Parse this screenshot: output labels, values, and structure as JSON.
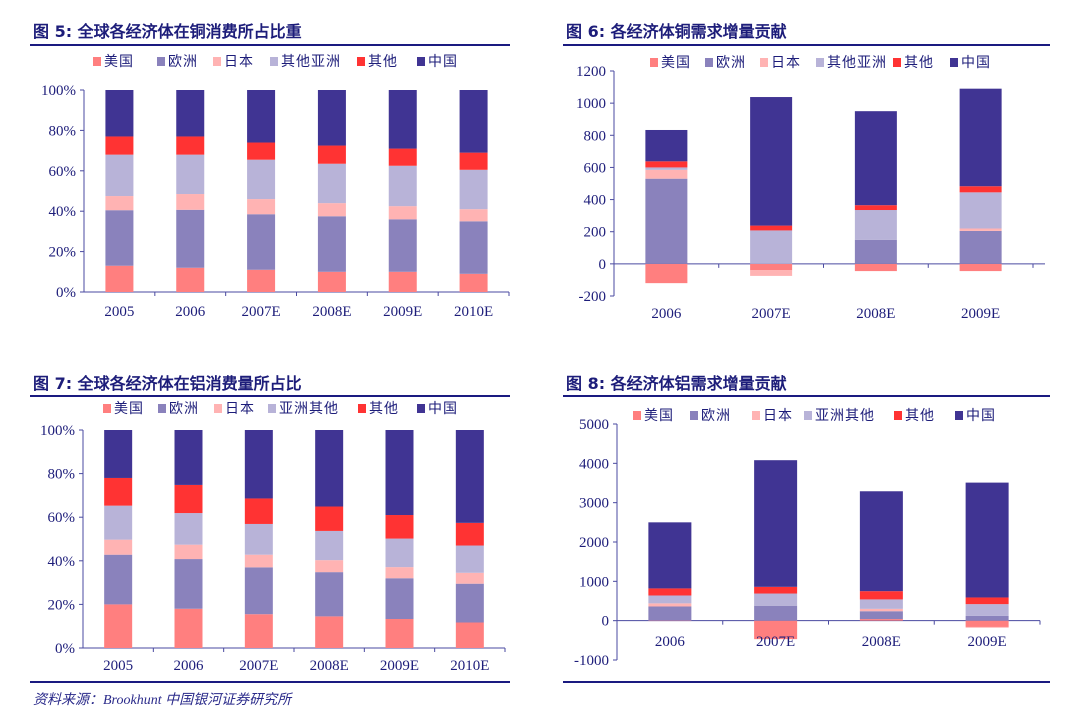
{
  "source": "资料来源：Brookhunt 中国银河证券研究所",
  "colors": {
    "美国": "#ff7f7f",
    "欧洲": "#8a82bc",
    "日本": "#ffb3b3",
    "其他亚洲": "#b8b3d8",
    "亚洲其他": "#b8b3d8",
    "其他": "#ff3333",
    "中国": "#403493"
  },
  "chart_data": [
    {
      "title": "图 5:  全球各经济体在铜消费所占比重",
      "type": "bar",
      "stacked": true,
      "categories": [
        "2005",
        "2006",
        "2007E",
        "2008E",
        "2009E",
        "2010E"
      ],
      "ylim": [
        0,
        100
      ],
      "yticks": [
        "0%",
        "20%",
        "40%",
        "60%",
        "80%",
        "100%"
      ],
      "series": [
        {
          "name": "美国",
          "values": [
            13,
            12,
            11,
            10,
            10,
            9
          ]
        },
        {
          "name": "欧洲",
          "values": [
            27.5,
            28.7,
            27.5,
            27.5,
            26,
            26
          ]
        },
        {
          "name": "日本",
          "values": [
            7,
            7.8,
            7.5,
            6.5,
            6.5,
            6
          ]
        },
        {
          "name": "其他亚洲",
          "values": [
            20.5,
            19.5,
            19.5,
            19.5,
            20,
            19.5
          ]
        },
        {
          "name": "其他",
          "values": [
            9,
            9,
            8.5,
            9,
            8.5,
            8.5
          ]
        },
        {
          "name": "中国",
          "values": [
            23,
            23,
            26,
            27.5,
            29,
            31
          ]
        }
      ],
      "legend": "top",
      "grid": false
    },
    {
      "title": "图 6:  各经济体铜需求增量贡献",
      "type": "bar",
      "stacked": true,
      "categories": [
        "2006",
        "2007E",
        "2008E",
        "2009E"
      ],
      "ylim": [
        -200,
        1200
      ],
      "yticks": [
        "-200",
        "0",
        "200",
        "400",
        "600",
        "800",
        "1000",
        "1200"
      ],
      "series": [
        {
          "name": "美国",
          "values": [
            -120,
            -40,
            -45,
            -45
          ]
        },
        {
          "name": "欧洲",
          "values": [
            530,
            0,
            150,
            205
          ]
        },
        {
          "name": "日本",
          "values": [
            55,
            -35,
            0,
            15
          ]
        },
        {
          "name": "其他亚洲",
          "values": [
            15,
            208,
            185,
            225
          ]
        },
        {
          "name": "其他",
          "values": [
            38,
            30,
            30,
            38
          ]
        },
        {
          "name": "中国",
          "values": [
            195,
            800,
            585,
            607
          ]
        }
      ],
      "legend": "top",
      "grid": false
    },
    {
      "title": "图 7:  全球各经济体在铝消费量所占比",
      "type": "bar",
      "stacked": true,
      "categories": [
        "2005",
        "2006",
        "2007E",
        "2008E",
        "2009E",
        "2010E"
      ],
      "ylim": [
        0,
        100
      ],
      "yticks": [
        "0%",
        "20%",
        "40%",
        "60%",
        "80%",
        "100%"
      ],
      "series": [
        {
          "name": "美国",
          "values": [
            20,
            18,
            15.5,
            14.5,
            13.3,
            11.7
          ]
        },
        {
          "name": "欧洲",
          "values": [
            22.8,
            22.8,
            21.5,
            20.3,
            18.7,
            17.8
          ]
        },
        {
          "name": "日本",
          "values": [
            6.9,
            6.6,
            5.8,
            5.5,
            5.1,
            5
          ]
        },
        {
          "name": "亚洲其他",
          "values": [
            15.6,
            14.5,
            14.1,
            13.4,
            13.1,
            12.5
          ]
        },
        {
          "name": "其他",
          "values": [
            12.7,
            12.9,
            11.7,
            11.2,
            10.8,
            10.4
          ]
        },
        {
          "name": "中国",
          "values": [
            22,
            25.2,
            31.4,
            35.1,
            39,
            42.6
          ]
        }
      ],
      "legend": "top",
      "grid": false
    },
    {
      "title": "图 8:  各经济体铝需求增量贡献",
      "type": "bar",
      "stacked": true,
      "categories": [
        "2006",
        "2007E",
        "2008E",
        "2009E"
      ],
      "ylim": [
        -1000,
        5000
      ],
      "yticks": [
        "-1000",
        "0",
        "1000",
        "2000",
        "3000",
        "4000",
        "5000"
      ],
      "series": [
        {
          "name": "美国",
          "values": [
            -10,
            -470,
            40,
            -160
          ]
        },
        {
          "name": "欧洲",
          "values": [
            360,
            380,
            200,
            120
          ]
        },
        {
          "name": "日本",
          "values": [
            80,
            0,
            60,
            -20
          ]
        },
        {
          "name": "亚洲其他",
          "values": [
            200,
            310,
            240,
            300
          ]
        },
        {
          "name": "其他",
          "values": [
            180,
            170,
            210,
            170
          ]
        },
        {
          "name": "中国",
          "values": [
            1680,
            3220,
            2540,
            2920
          ]
        }
      ],
      "legend": "top",
      "grid": false
    }
  ]
}
